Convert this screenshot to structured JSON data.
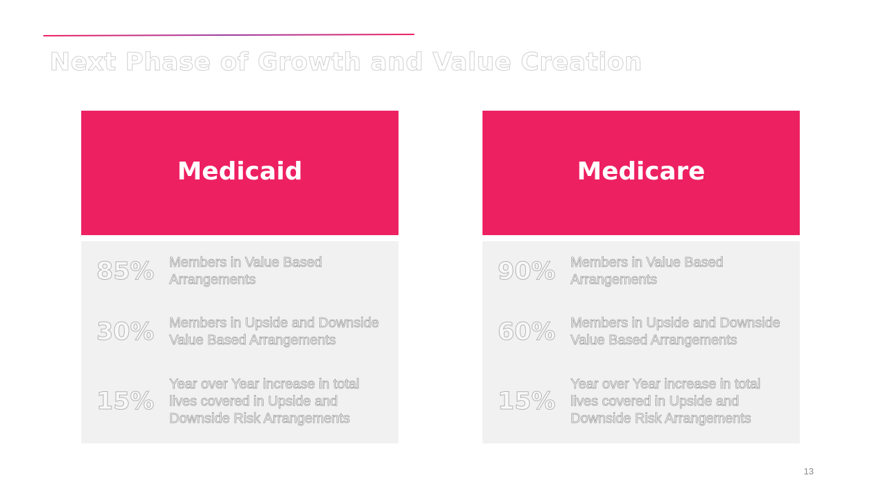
{
  "slide": {
    "title": "Next Phase of Growth and Value Creation",
    "page_number": "13",
    "accent_color": "#ed2062",
    "panel_body_color": "#f1f1f1"
  },
  "panels": [
    {
      "title": "Medicaid",
      "stats": [
        {
          "value": "85%",
          "description": "Members in Value Based Arrangements"
        },
        {
          "value": "30%",
          "description": "Members in Upside and Downside Value Based Arrangements"
        },
        {
          "value": "15%",
          "description": "Year over Year increase in total lives covered in Upside and Downside Risk Arrangements"
        }
      ]
    },
    {
      "title": "Medicare",
      "stats": [
        {
          "value": "90%",
          "description": "Members in Value Based Arrangements"
        },
        {
          "value": "60%",
          "description": "Members in Upside and Downside Value Based Arrangements"
        },
        {
          "value": "15%",
          "description": "Year over Year increase in total lives covered in Upside and Downside Risk Arrangements"
        }
      ]
    }
  ]
}
